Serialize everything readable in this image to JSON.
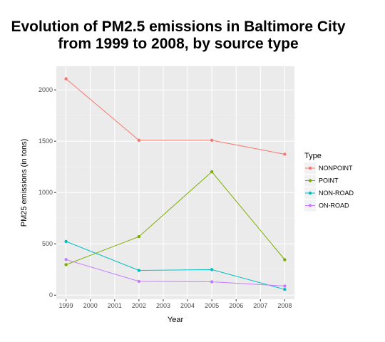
{
  "chart_data": {
    "type": "line",
    "title": "Evolution of PM2.5 emissions in Baltimore City from 1999 to 2008, by source type",
    "title_lines": [
      "Evolution of PM2.5 emissions in Baltimore City",
      "from 1999 to 2008, by source type"
    ],
    "xlabel": "Year",
    "ylabel": "PM25 emissions (in tons)",
    "x": [
      1999,
      2002,
      2005,
      2008
    ],
    "x_ticks": [
      1999,
      2000,
      2001,
      2002,
      2003,
      2004,
      2005,
      2006,
      2007,
      2008
    ],
    "y_ticks": [
      0,
      500,
      1000,
      1500,
      2000
    ],
    "xlim": [
      1998.6,
      2008.4
    ],
    "ylim": [
      -40,
      2230
    ],
    "grid": true,
    "legend": {
      "title": "Type",
      "position": "right"
    },
    "series": [
      {
        "name": "NONPOINT",
        "color": "#F8766D",
        "values": [
          2108,
          1509,
          1509,
          1373
        ]
      },
      {
        "name": "POINT",
        "color": "#7CAE00",
        "values": [
          297,
          570,
          1202,
          345
        ]
      },
      {
        "name": "NON-ROAD",
        "color": "#00BFC4",
        "values": [
          523,
          241,
          249,
          56
        ]
      },
      {
        "name": "ON-ROAD",
        "color": "#C77CFF",
        "values": [
          347,
          134,
          130,
          89
        ]
      }
    ]
  }
}
